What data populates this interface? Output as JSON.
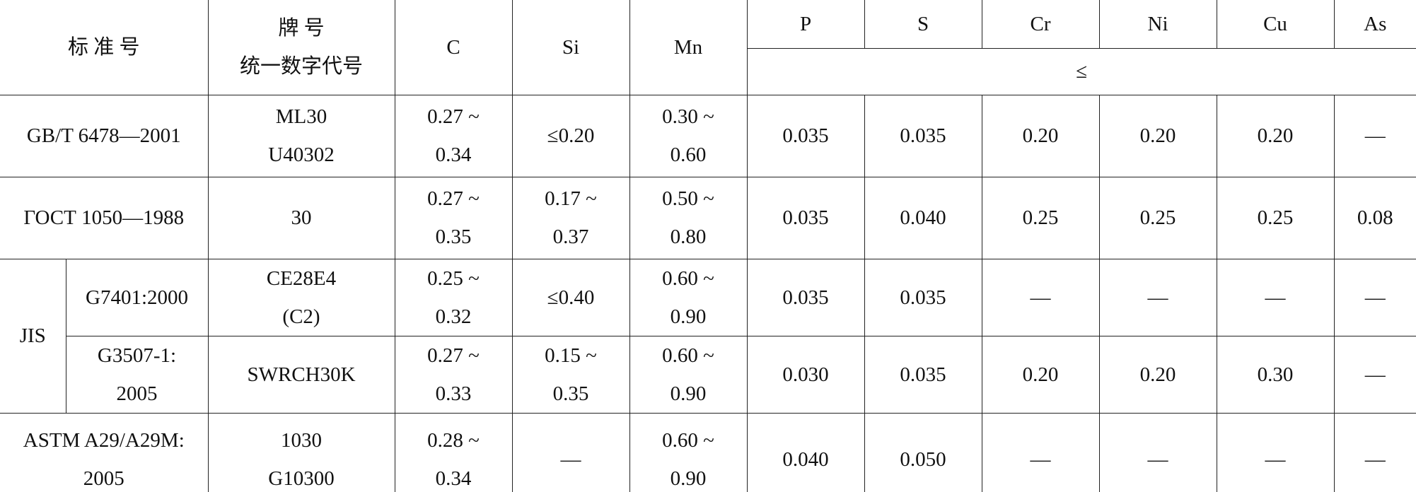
{
  "table": {
    "header": [
      [
        [
          "标 准 号"
        ],
        [
          "牌 号",
          "统一数字代号"
        ],
        [
          "C"
        ],
        [
          "Si"
        ],
        [
          "Mn"
        ],
        [
          "P"
        ],
        [
          "S"
        ],
        [
          "Cr"
        ],
        [
          "Ni"
        ],
        [
          "Cu"
        ],
        [
          "As"
        ]
      ],
      [
        [
          "≤"
        ]
      ]
    ],
    "rows": [
      [
        [
          "GB/T 6478—2001"
        ],
        [
          "ML30",
          "U40302"
        ],
        [
          "0.27 ~",
          "0.34"
        ],
        [
          "≤0.20"
        ],
        [
          "0.30 ~",
          "0.60"
        ],
        [
          "0.035"
        ],
        [
          "0.035"
        ],
        [
          "0.20"
        ],
        [
          "0.20"
        ],
        [
          "0.20"
        ],
        [
          "—"
        ]
      ],
      [
        [
          "ГОСТ 1050—1988"
        ],
        [
          "30"
        ],
        [
          "0.27 ~",
          "0.35"
        ],
        [
          "0.17 ~",
          "0.37"
        ],
        [
          "0.50 ~",
          "0.80"
        ],
        [
          "0.035"
        ],
        [
          "0.040"
        ],
        [
          "0.25"
        ],
        [
          "0.25"
        ],
        [
          "0.25"
        ],
        [
          "0.08"
        ]
      ],
      [
        [
          "JIS"
        ],
        [
          "G7401:2000"
        ],
        [
          "CE28E4",
          "(C2)"
        ],
        [
          "0.25 ~",
          "0.32"
        ],
        [
          "≤0.40"
        ],
        [
          "0.60 ~",
          "0.90"
        ],
        [
          "0.035"
        ],
        [
          "0.035"
        ],
        [
          "—"
        ],
        [
          "—"
        ],
        [
          "—"
        ],
        [
          "—"
        ]
      ],
      [
        [
          "G3507-1:",
          "2005"
        ],
        [
          "SWRCH30K"
        ],
        [
          "0.27 ~",
          "0.33"
        ],
        [
          "0.15 ~",
          "0.35"
        ],
        [
          "0.60 ~",
          "0.90"
        ],
        [
          "0.030"
        ],
        [
          "0.035"
        ],
        [
          "0.20"
        ],
        [
          "0.20"
        ],
        [
          "0.30"
        ],
        [
          "—"
        ]
      ],
      [
        [
          "ASTM A29/A29M:",
          "2005"
        ],
        [
          "1030",
          "G10300"
        ],
        [
          "0.28 ~",
          "0.34"
        ],
        [
          "—"
        ],
        [
          "0.60 ~",
          "0.90"
        ],
        [
          "0.040"
        ],
        [
          "0.050"
        ],
        [
          "—"
        ],
        [
          "—"
        ],
        [
          "—"
        ],
        [
          "—"
        ]
      ]
    ]
  }
}
